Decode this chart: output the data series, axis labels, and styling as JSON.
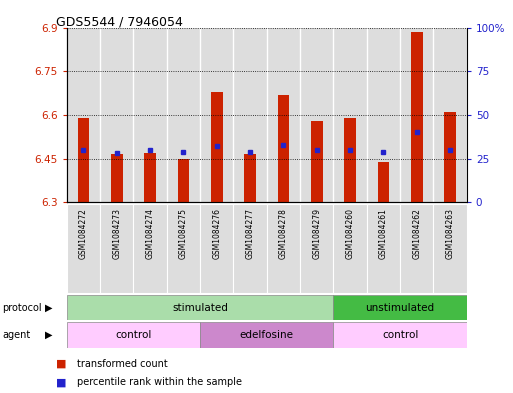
{
  "title": "GDS5544 / 7946054",
  "samples": [
    "GSM1084272",
    "GSM1084273",
    "GSM1084274",
    "GSM1084275",
    "GSM1084276",
    "GSM1084277",
    "GSM1084278",
    "GSM1084279",
    "GSM1084260",
    "GSM1084261",
    "GSM1084262",
    "GSM1084263"
  ],
  "red_values": [
    6.59,
    6.465,
    6.47,
    6.448,
    6.68,
    6.465,
    6.67,
    6.58,
    6.59,
    6.44,
    6.885,
    6.61
  ],
  "blue_values_pct": [
    30,
    28,
    30,
    29,
    32,
    29,
    33,
    30,
    30,
    29,
    40,
    30
  ],
  "y_min": 6.3,
  "y_max": 6.9,
  "y_ticks": [
    6.3,
    6.45,
    6.6,
    6.75,
    6.9
  ],
  "y_right_ticks": [
    0,
    25,
    50,
    75,
    100
  ],
  "bar_color": "#cc2200",
  "dot_color": "#2222cc",
  "protocol_groups": [
    {
      "label": "stimulated",
      "start": 0,
      "end": 8,
      "color": "#aaddaa"
    },
    {
      "label": "unstimulated",
      "start": 8,
      "end": 12,
      "color": "#44bb44"
    }
  ],
  "agent_groups": [
    {
      "label": "control",
      "start": 0,
      "end": 4,
      "color": "#ffccff"
    },
    {
      "label": "edelfosine",
      "start": 4,
      "end": 8,
      "color": "#cc88cc"
    },
    {
      "label": "control",
      "start": 8,
      "end": 12,
      "color": "#ffccff"
    }
  ],
  "legend_items": [
    {
      "label": "transformed count",
      "color": "#cc2200"
    },
    {
      "label": "percentile rank within the sample",
      "color": "#2222cc"
    }
  ],
  "background_color": "#ffffff",
  "tick_label_color_left": "#cc2200",
  "tick_label_color_right": "#2222cc",
  "col_bg_color": "#dddddd"
}
